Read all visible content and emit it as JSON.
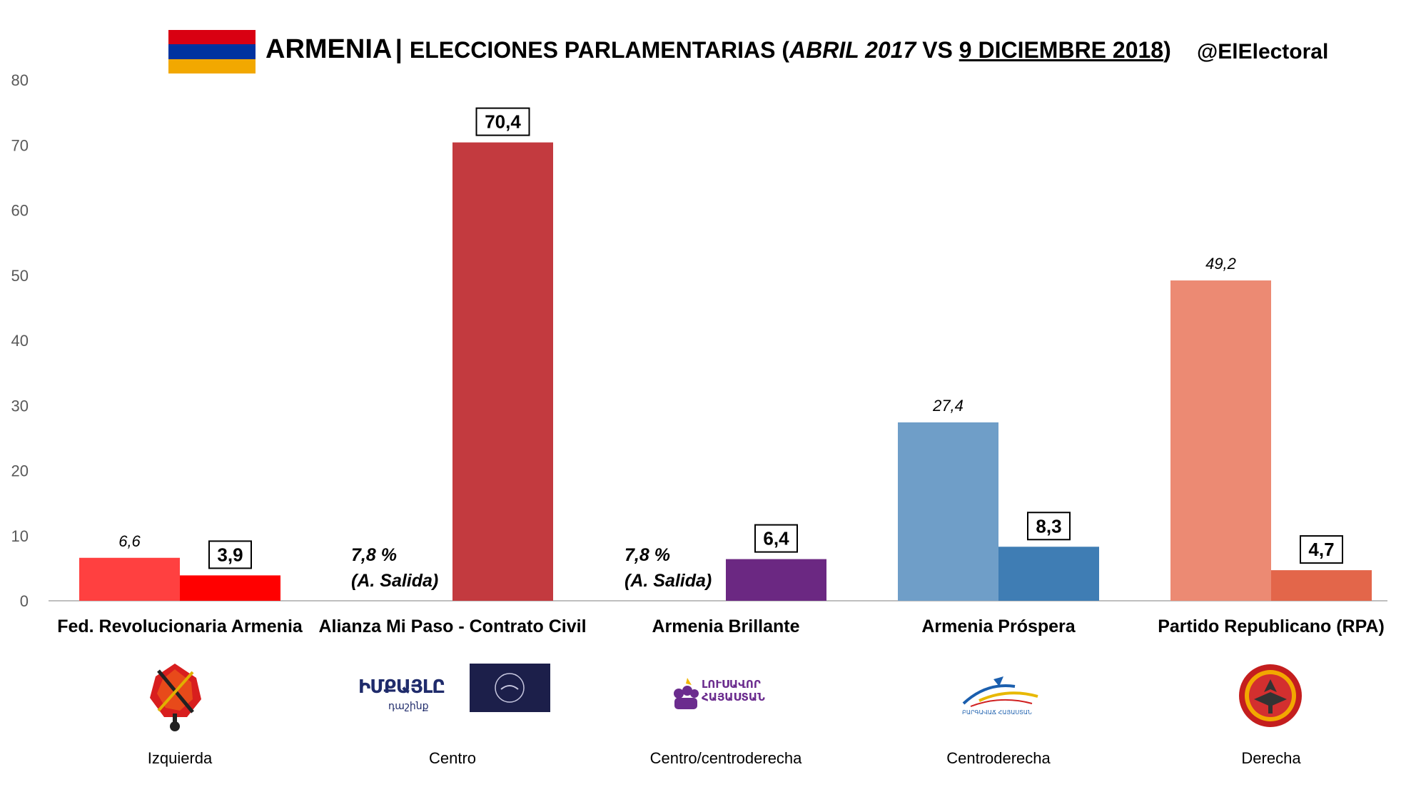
{
  "title": {
    "country": "ARMENIA",
    "separator": "|",
    "prefix": "ELECCIONES PARLAMENTARIAS (",
    "date_2017": "ABRIL 2017",
    "vs": " VS ",
    "date_2018": "9 DICIEMBRE 2018",
    "suffix": ")"
  },
  "handle": "@ElElectoral",
  "flag_colors": [
    "#d90012",
    "#0033a0",
    "#f2a800"
  ],
  "chart_data": {
    "type": "bar",
    "ylim": [
      0,
      80
    ],
    "yticks": [
      "0",
      "10",
      "20",
      "30",
      "40",
      "50",
      "60",
      "70",
      "80"
    ],
    "categories": [
      "Fed. Revolucionaria Armenia",
      "Alianza Mi Paso - Contrato Civil",
      "Armenia Brillante",
      "Armenia Próspera",
      "Partido Republicano (RPA)"
    ],
    "series": [
      {
        "values": [
          6.6,
          null,
          null,
          27.4,
          49.2
        ],
        "labels": [
          "6,6",
          "",
          "",
          "27,4",
          "49,2"
        ],
        "colors": [
          "#ff4040",
          null,
          null,
          "#6f9ec8",
          "#ec8a73"
        ]
      },
      {
        "values": [
          3.9,
          70.4,
          6.4,
          8.3,
          4.7
        ],
        "labels": [
          "3,9",
          "70,4",
          "6,4",
          "8,3",
          "4,7"
        ],
        "colors": [
          "#ff0000",
          "#c33a3f",
          "#6b2882",
          "#3f7db4",
          "#e3664a"
        ]
      }
    ],
    "notes": [
      {
        "category_index": 1,
        "line1": "7,8 %",
        "line2": "(A. Salida)"
      },
      {
        "category_index": 2,
        "line1": "7,8 %",
        "line2": "(A. Salida)"
      }
    ],
    "ideology": [
      "Izquierda",
      "Centro",
      "Centro/centroderecha",
      "Centroderecha",
      "Derecha"
    ]
  },
  "logos": {
    "my_step_text": "ԻՄՔԱՅԼԸ",
    "my_step_sub": "դաշինք",
    "bright_text_1": "ԼՈՒՍԱՎՈՐ",
    "bright_text_2": "ՀԱՅԱՍՏԱՆ",
    "prosperous_text": "ԲԱՐԳԱՎԱՃ ՀԱՅԱՍՏԱՆ"
  }
}
